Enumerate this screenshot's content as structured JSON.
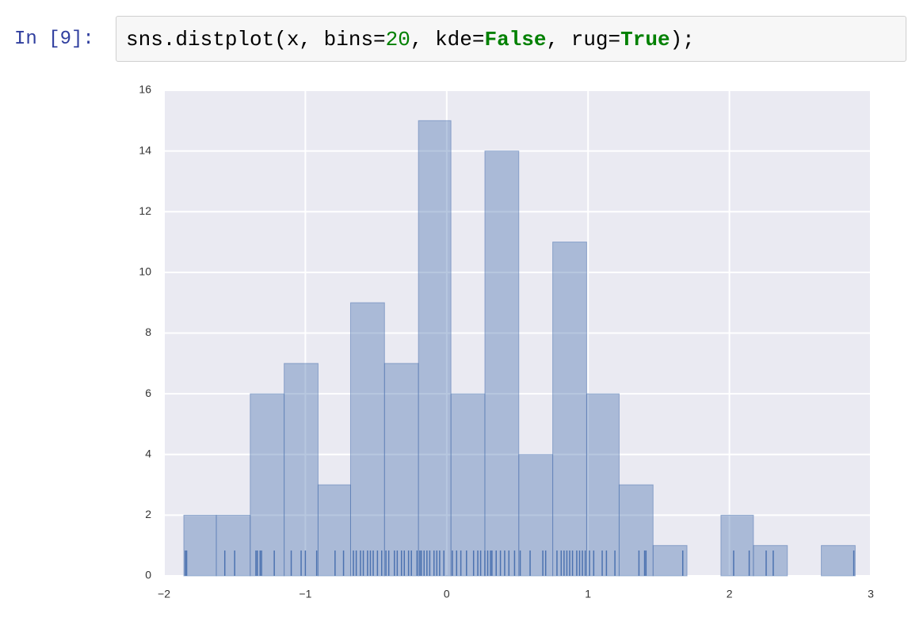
{
  "prompt": "In [9]:",
  "code": [
    "sns.distplot(x, bins=",
    "20",
    ", kde=",
    "False",
    ", rug=",
    "True",
    ");"
  ],
  "chart_data": {
    "type": "histogram",
    "bins": [
      -1.86,
      -1.63,
      -1.39,
      -1.15,
      -0.91,
      -0.68,
      -0.44,
      -0.2,
      0.03,
      0.27,
      0.51,
      0.75,
      0.99,
      1.22,
      1.46,
      1.7,
      1.94,
      2.17,
      2.41,
      2.65,
      2.89
    ],
    "values": [
      2,
      2,
      6,
      7,
      3,
      9,
      7,
      15,
      6,
      14,
      4,
      11,
      6,
      3,
      1,
      0,
      2,
      1,
      0,
      1
    ],
    "rug": [
      -1.85,
      -1.84,
      -1.57,
      -1.5,
      -1.35,
      -1.34,
      -1.32,
      -1.31,
      -1.22,
      -1.1,
      -1.03,
      -1.0,
      -0.92,
      -0.79,
      -0.73,
      -0.66,
      -0.64,
      -0.61,
      -0.59,
      -0.56,
      -0.54,
      -0.52,
      -0.49,
      -0.46,
      -0.43,
      -0.41,
      -0.37,
      -0.35,
      -0.32,
      -0.3,
      -0.27,
      -0.25,
      -0.21,
      -0.19,
      -0.18,
      -0.16,
      -0.14,
      -0.12,
      -0.09,
      -0.07,
      -0.05,
      -0.02,
      0.04,
      0.07,
      0.1,
      0.14,
      0.19,
      0.22,
      0.24,
      0.27,
      0.29,
      0.31,
      0.32,
      0.35,
      0.38,
      0.41,
      0.44,
      0.48,
      0.52,
      0.59,
      0.68,
      0.7,
      0.78,
      0.81,
      0.83,
      0.85,
      0.87,
      0.89,
      0.92,
      0.94,
      0.96,
      0.98,
      1.01,
      1.04,
      1.1,
      1.13,
      1.19,
      1.36,
      1.4,
      1.41,
      1.67,
      2.03,
      2.14,
      2.26,
      2.31,
      2.88
    ],
    "color": "#4c72b0",
    "xlim": [
      -2,
      3
    ],
    "ylim": [
      0,
      16
    ],
    "xticks": [
      {
        "value": -2,
        "label": "−2"
      },
      {
        "value": -1,
        "label": "−1"
      },
      0,
      1,
      2,
      3
    ],
    "yticks": [
      0,
      2,
      4,
      6,
      8,
      10,
      12,
      14,
      16
    ],
    "grid": true
  }
}
